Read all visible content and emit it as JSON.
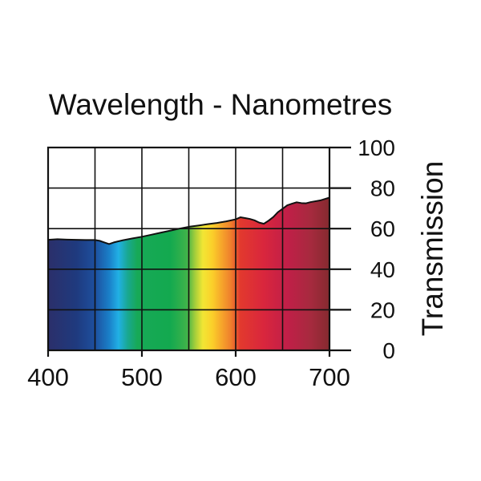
{
  "chart_data": {
    "type": "area",
    "title": "Wavelength - Nanometres",
    "xlabel": "",
    "ylabel": "Transmission",
    "xlim": [
      400,
      700
    ],
    "ylim": [
      0,
      100
    ],
    "x_ticks": [
      "400",
      "500",
      "600",
      "700"
    ],
    "y_ticks": [
      "0",
      "20",
      "40",
      "60",
      "80",
      "100"
    ],
    "x_grid_step": 50,
    "y_grid_step": 20,
    "grid": true,
    "y_axis_side": "right",
    "fill": "visible-spectrum gradient",
    "spectrum_colors": [
      {
        "nm": 400,
        "color": "#2b2f6a"
      },
      {
        "nm": 430,
        "color": "#1f3a7e"
      },
      {
        "nm": 450,
        "color": "#1d4f9e"
      },
      {
        "nm": 465,
        "color": "#1a7fc8"
      },
      {
        "nm": 475,
        "color": "#21b0e5"
      },
      {
        "nm": 485,
        "color": "#19a890"
      },
      {
        "nm": 495,
        "color": "#17a957"
      },
      {
        "nm": 530,
        "color": "#13a94f"
      },
      {
        "nm": 548,
        "color": "#3fb34a"
      },
      {
        "nm": 557,
        "color": "#a8cf3a"
      },
      {
        "nm": 565,
        "color": "#f2e634"
      },
      {
        "nm": 575,
        "color": "#fbd02a"
      },
      {
        "nm": 585,
        "color": "#f6a52b"
      },
      {
        "nm": 595,
        "color": "#ef7e2c"
      },
      {
        "nm": 605,
        "color": "#e2392e"
      },
      {
        "nm": 630,
        "color": "#d9263d"
      },
      {
        "nm": 655,
        "color": "#c11f48"
      },
      {
        "nm": 680,
        "color": "#a62a3e"
      },
      {
        "nm": 700,
        "color": "#852a2f"
      }
    ],
    "series": [
      {
        "x": [
          400,
          410,
          420,
          430,
          440,
          450,
          455,
          460,
          465,
          470,
          480,
          490,
          500,
          510,
          520,
          530,
          540,
          550,
          560,
          570,
          580,
          590,
          600,
          605,
          610,
          615,
          620,
          625,
          630,
          635,
          640,
          645,
          650,
          655,
          660,
          665,
          670,
          675,
          680,
          690,
          700
        ],
        "values": [
          54.5,
          54.8,
          54.6,
          54.5,
          54.4,
          54.4,
          54.0,
          53.2,
          52.4,
          53.2,
          54.3,
          55.2,
          56.0,
          57.0,
          58.0,
          59.0,
          60.0,
          60.9,
          61.5,
          62.2,
          62.8,
          63.6,
          64.6,
          65.6,
          65.2,
          64.8,
          64.1,
          63.0,
          62.4,
          63.9,
          65.7,
          68.1,
          69.8,
          71.5,
          72.3,
          73.0,
          72.6,
          72.5,
          73.1,
          73.9,
          75.3
        ]
      }
    ]
  }
}
